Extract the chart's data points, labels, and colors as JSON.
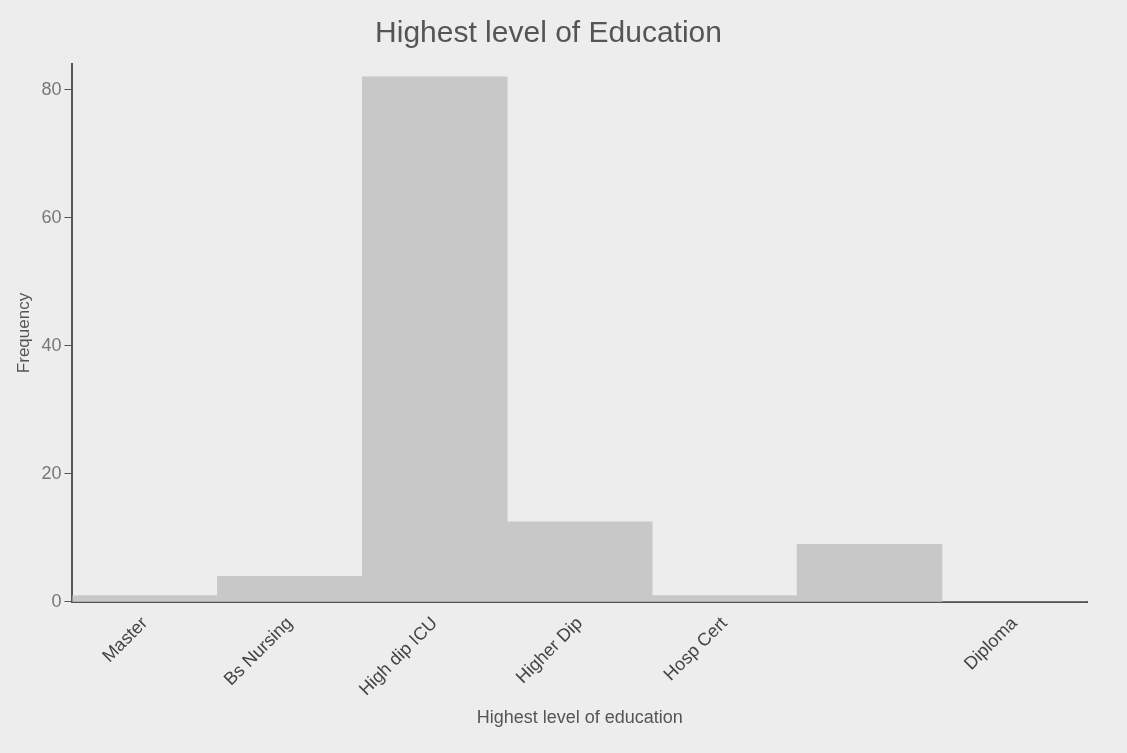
{
  "chart_data": {
    "type": "bar",
    "title": "Highest level of Education",
    "xlabel": "Highest level of education",
    "ylabel": "Frequency",
    "categories": [
      "Master",
      "Bs Nursing",
      "High dip ICU",
      "Higher Dip",
      "Hosp Cert",
      null,
      "Diploma"
    ],
    "values": [
      1,
      4,
      82,
      12.5,
      1,
      9,
      0
    ],
    "color": "#c8c8c8",
    "ylim": [
      0,
      84
    ],
    "yticks": [
      0,
      20,
      40,
      60,
      80
    ],
    "grid": false,
    "legend": false
  }
}
